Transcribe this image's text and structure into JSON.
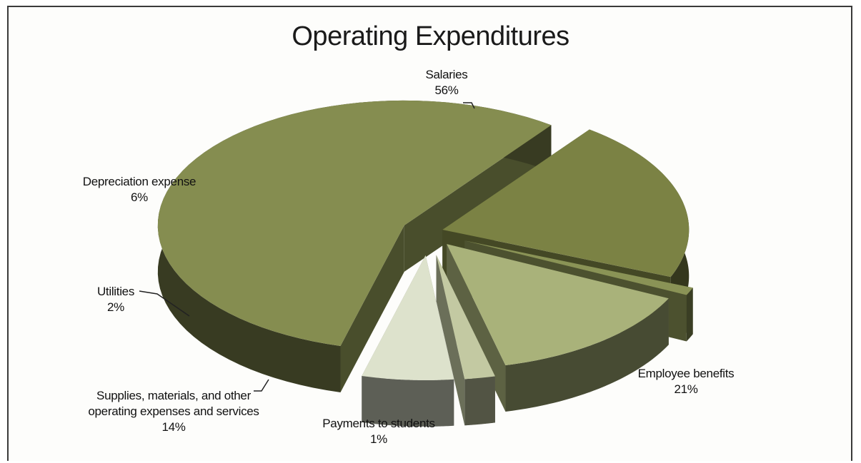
{
  "chart_data": {
    "type": "pie",
    "title": "Operating Expenditures",
    "slices": [
      {
        "label": "Salaries",
        "value": 56,
        "display": "56%",
        "color": "#858d50"
      },
      {
        "label": "Employee benefits",
        "value": 21,
        "display": "21%",
        "color": "#7b8244"
      },
      {
        "label": "Payments to students",
        "value": 1,
        "display": "1%",
        "color": "#8a9356"
      },
      {
        "label": "Supplies, materials, and other operating expenses and services",
        "value": 14,
        "display": "14%",
        "color": "#a9b27a"
      },
      {
        "label": "Utilities",
        "value": 2,
        "display": "2%",
        "color": "#c3c9a2"
      },
      {
        "label": "Depreciation expense",
        "value": 6,
        "display": "6%",
        "color": "#dde2cc"
      }
    ],
    "legend": "none",
    "exploded": true,
    "style": "3d"
  }
}
